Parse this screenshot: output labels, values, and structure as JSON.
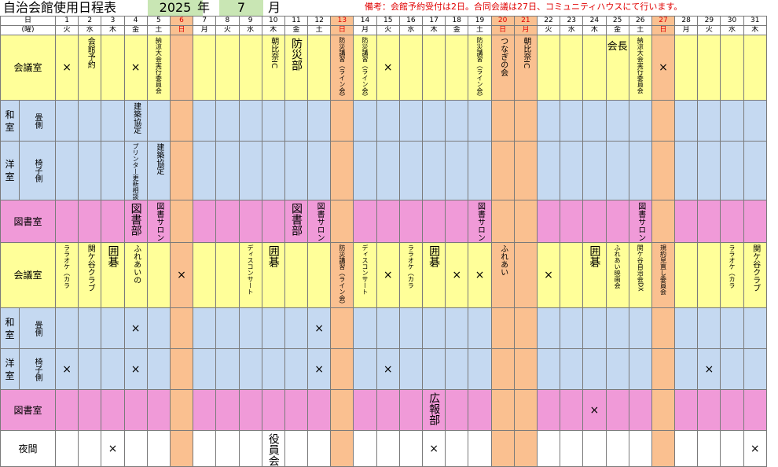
{
  "title": "自治会館使用日程表",
  "year": "2025",
  "year_unit": "年",
  "month": "7",
  "month_unit": "月",
  "note": "備考：会館予約受付は2日。合同会議は27日、コミュニティハウスにて行います。",
  "header": {
    "day_label": "日",
    "weekday_label": "(曜)"
  },
  "days": [
    {
      "d": "1",
      "w": "火"
    },
    {
      "d": "2",
      "w": "水"
    },
    {
      "d": "3",
      "w": "木"
    },
    {
      "d": "4",
      "w": "金"
    },
    {
      "d": "5",
      "w": "土"
    },
    {
      "d": "6",
      "w": "日",
      "hol": true
    },
    {
      "d": "7",
      "w": "月"
    },
    {
      "d": "8",
      "w": "火"
    },
    {
      "d": "9",
      "w": "水"
    },
    {
      "d": "10",
      "w": "木"
    },
    {
      "d": "11",
      "w": "金"
    },
    {
      "d": "12",
      "w": "土"
    },
    {
      "d": "13",
      "w": "日",
      "hol": true
    },
    {
      "d": "14",
      "w": "月"
    },
    {
      "d": "15",
      "w": "火"
    },
    {
      "d": "16",
      "w": "水"
    },
    {
      "d": "17",
      "w": "木"
    },
    {
      "d": "18",
      "w": "金"
    },
    {
      "d": "19",
      "w": "土"
    },
    {
      "d": "20",
      "w": "日",
      "hol": true
    },
    {
      "d": "21",
      "w": "月",
      "hol": true
    },
    {
      "d": "22",
      "w": "火"
    },
    {
      "d": "23",
      "w": "水"
    },
    {
      "d": "24",
      "w": "木"
    },
    {
      "d": "25",
      "w": "金"
    },
    {
      "d": "26",
      "w": "土"
    },
    {
      "d": "27",
      "w": "日",
      "hol": true
    },
    {
      "d": "28",
      "w": "月"
    },
    {
      "d": "29",
      "w": "火"
    },
    {
      "d": "30",
      "w": "水"
    },
    {
      "d": "31",
      "w": "木"
    }
  ],
  "labels": {
    "kaigishitsu": "会議室",
    "washitsu": "和室",
    "tatami": "畳側",
    "yoshitsu": "洋室",
    "isu": "椅子側",
    "toshoshitsu": "図書室",
    "yakan": "夜間"
  },
  "rows": [
    {
      "key": "am_kaigi",
      "cells": {
        "1": "×",
        "2": "会館予約",
        "4": "×",
        "5": "納涼大会実行委員会",
        "10": "朝比奈IC",
        "11": "防災部",
        "13": "防災講習（ライン会）",
        "14": "防災講習（ライン会）",
        "15": "×",
        "19": "防災講習（ライン会）",
        "20": "つなぎの会",
        "21": "朝比奈IC",
        "25": "会長",
        "26": "納涼大会実行委員会",
        "27": "×"
      }
    },
    {
      "key": "am_tatami",
      "cells": {
        "4": "建築協定"
      }
    },
    {
      "key": "am_isu",
      "cells": {
        "4": "プリンター更新相談",
        "5": "建築協定"
      }
    },
    {
      "key": "am_tosho",
      "cells": {
        "4": "図書部",
        "5": "図書サロン",
        "11": "図書部",
        "12": "図書サロン",
        "19": "図書サロン",
        "26": "図書サロン"
      }
    },
    {
      "key": "pm_kaigi",
      "cells": {
        "1": "ララオケ（カラ",
        "2": "関ケ谷クラブ",
        "3": "囲碁",
        "4": "ふれあいの",
        "6": "×",
        "9": "ディスコンサート",
        "10": "囲碁",
        "13": "防災講習（ライン会）",
        "14": "ディスコンサート",
        "15": "×",
        "16": "ララオケ（カラ",
        "17": "囲碁",
        "18": "×",
        "19": "×",
        "20": "ふれあい",
        "22": "×",
        "24": "囲碁",
        "25": "ふれあい映画会",
        "26": "関ケ谷自治会DX",
        "27": "規約見直し委員会",
        "30": "ララオケ（カラ",
        "31": "関ケ谷クラブ"
      }
    },
    {
      "key": "pm_tatami",
      "cells": {
        "4": "×",
        "12": "×"
      }
    },
    {
      "key": "pm_isu",
      "cells": {
        "1": "×",
        "4": "×",
        "12": "×",
        "15": "×",
        "29": "×"
      }
    },
    {
      "key": "pm_tosho",
      "cells": {
        "17": "広報部",
        "24": "×"
      }
    },
    {
      "key": "night",
      "cells": {
        "3": "×",
        "10": "役員会",
        "17": "×",
        "31": "×"
      }
    }
  ],
  "colors": {
    "yellow": "#ffff99",
    "blue": "#c5d9f1",
    "pink": "#f09ad8",
    "orange": "#fac090",
    "teal": "#b7dee8",
    "holiday_text": "#e00000"
  }
}
